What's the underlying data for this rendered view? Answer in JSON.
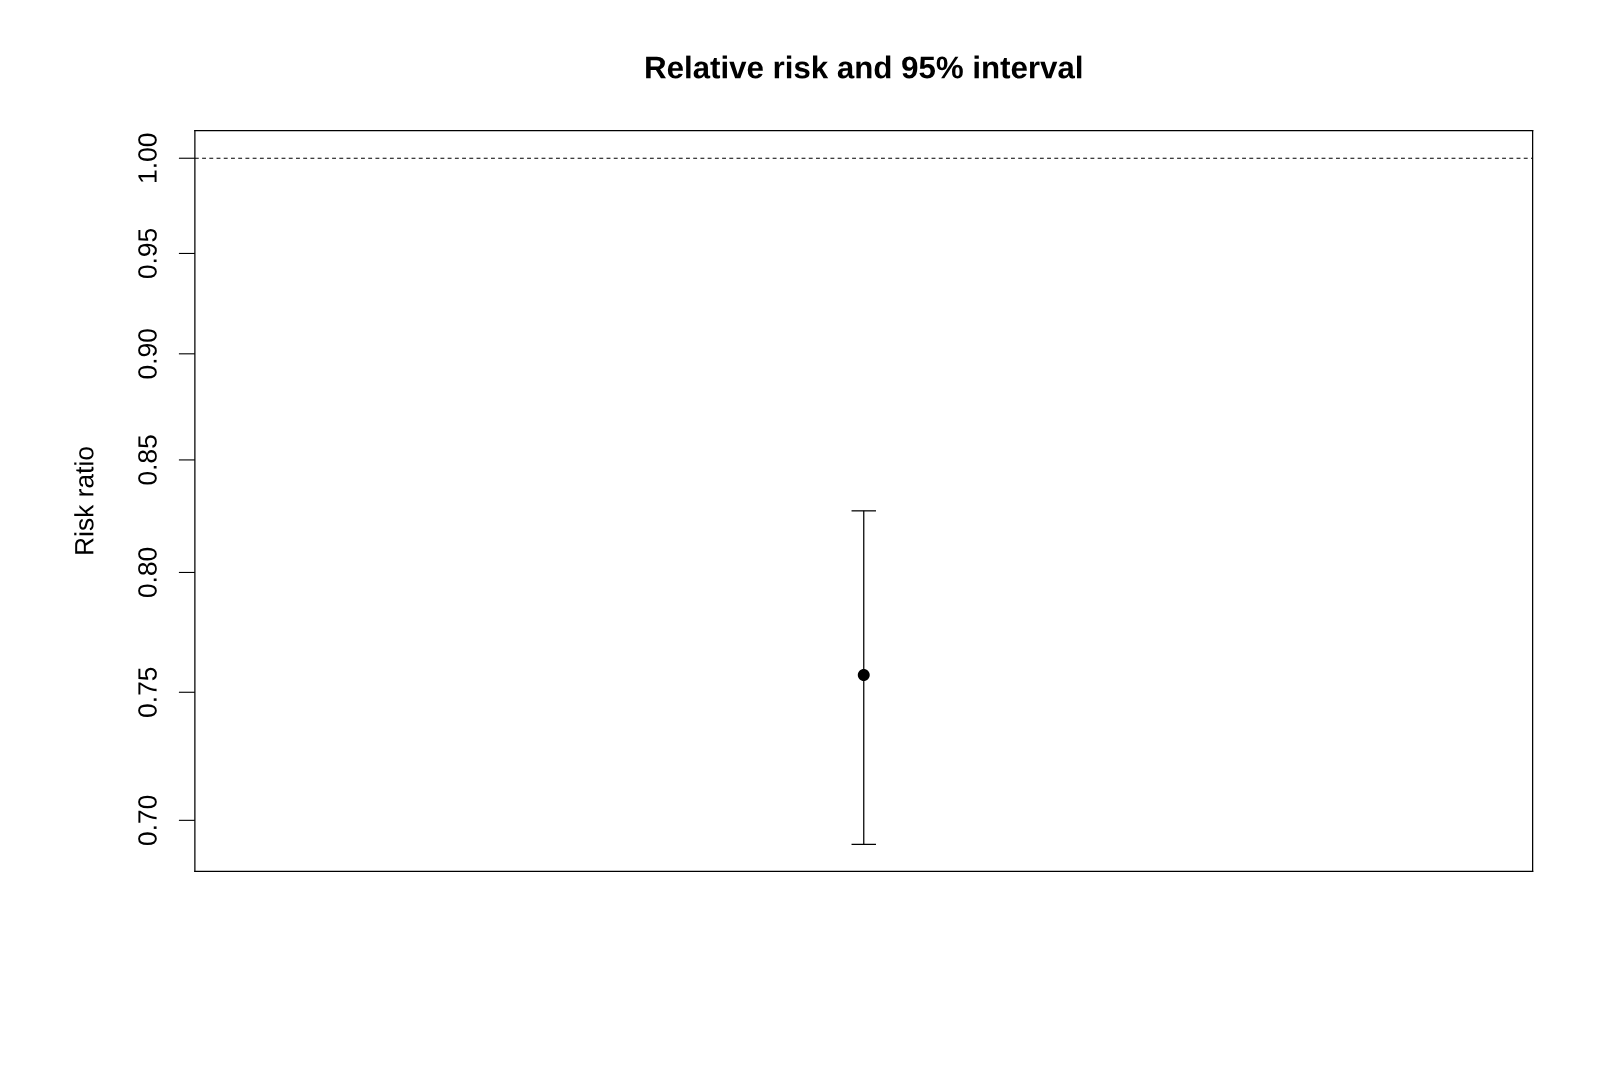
{
  "chart_data": {
    "type": "scatter",
    "title": "Relative risk and 95% interval",
    "ylabel": "Risk ratio",
    "categories": [
      null
    ],
    "values": [
      0.757
    ],
    "errors": [
      [
        0.691,
        0.827
      ]
    ],
    "color": "#000000",
    "marker": "circle",
    "log": true,
    "ylim": [
      0.681,
      1.015
    ],
    "yticks": [
      {
        "value": 0.7,
        "label": "0.70"
      },
      {
        "value": 0.75,
        "label": "0.75"
      },
      {
        "value": 0.8,
        "label": "0.80"
      },
      {
        "value": 0.85,
        "label": "0.85"
      },
      {
        "value": 0.9,
        "label": "0.90"
      },
      {
        "value": 0.95,
        "label": "0.95"
      },
      {
        "value": 1.0,
        "label": "1.00"
      }
    ],
    "ref_lines": [
      {
        "axis": "y",
        "value": 1,
        "line_style": "dashed",
        "color": "#000000"
      }
    ],
    "tick_labels": "y"
  }
}
